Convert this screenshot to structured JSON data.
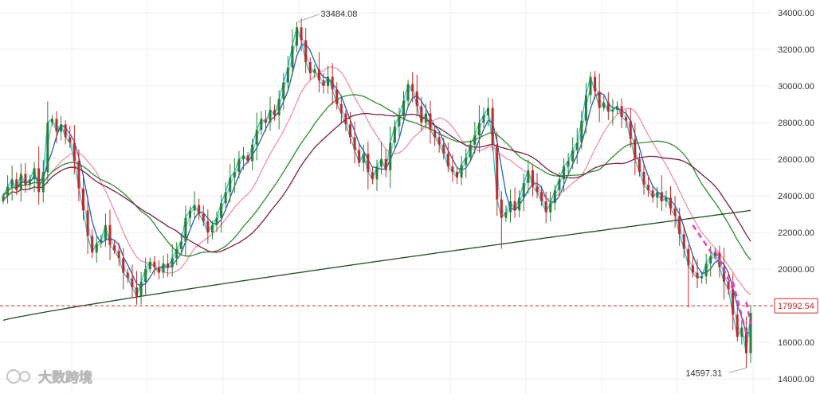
{
  "watermark": {
    "text": "大数跨境"
  },
  "chart_data": {
    "type": "candlestick",
    "y_ticks": [
      "34000.00",
      "32000.00",
      "30000.00",
      "28000.00",
      "26000.00",
      "24000.00",
      "22000.00",
      "20000.00",
      "18000.00",
      "16000.00",
      "14000.00"
    ],
    "ylim": [
      14000,
      34000
    ],
    "grid": true,
    "current_price": {
      "value": 17992.54,
      "label": "17992.54",
      "color": "#d62728"
    },
    "annotations": {
      "high": "33484.08",
      "low": "14597.31"
    },
    "colors": {
      "up": "#2e7d32",
      "down": "#c62828"
    },
    "series": [
      {
        "period_bars": 5,
        "color": "#27c3c8"
      },
      {
        "period_bars": 10,
        "color": "#80d4e8"
      },
      {
        "period_bars": 20,
        "color": "#1e62b6"
      },
      {
        "period_bars": 60,
        "color": "#ef8fa8"
      },
      {
        "period_bars": 120,
        "color": "#2e8b2e"
      },
      {
        "period_bars": 250,
        "color": "#7a1f4b"
      },
      {
        "period_bars": 500,
        "color": "#1f4f1f"
      }
    ],
    "trend_arrows_color": "#e040c8",
    "closes": [
      24000,
      24500,
      24900,
      24300,
      25200,
      24600,
      24900,
      25500,
      24200,
      25300,
      28000,
      28200,
      27500,
      27900,
      27200,
      26900,
      25900,
      24400,
      23200,
      21800,
      20900,
      21400,
      21600,
      22400,
      21300,
      21000,
      20600,
      19800,
      19500,
      19000,
      18500,
      19300,
      20000,
      20400,
      20100,
      19800,
      20300,
      20100,
      20600,
      21100,
      21500,
      22800,
      23200,
      23500,
      23000,
      22600,
      22000,
      22400,
      22800,
      23600,
      24200,
      25000,
      25300,
      26000,
      26200,
      25900,
      26800,
      27600,
      28200,
      28000,
      28700,
      28400,
      29300,
      30200,
      31000,
      32200,
      33200,
      32500,
      31300,
      30700,
      30900,
      30300,
      30000,
      30500,
      29800,
      29000,
      28500,
      27900,
      27200,
      26500,
      25800,
      26300,
      25300,
      24900,
      25600,
      26000,
      25400,
      26900,
      27800,
      28400,
      29200,
      30100,
      29700,
      28900,
      28000,
      28500,
      27600,
      27200,
      26800,
      26300,
      25600,
      25300,
      25000,
      25700,
      26100,
      26800,
      27300,
      28000,
      28400,
      28800,
      26800,
      23800,
      22800,
      23100,
      23700,
      23200,
      23900,
      24700,
      25400,
      24500,
      24200,
      23700,
      23100,
      23600,
      24300,
      24900,
      25600,
      25900,
      26500,
      26900,
      28100,
      29500,
      30500,
      29700,
      28800,
      29100,
      28600,
      28700,
      28900,
      28300,
      28100,
      27100,
      26000,
      25300,
      24600,
      24300,
      23900,
      24200,
      23700,
      23900,
      23300,
      22900,
      21900,
      21100,
      20200,
      19800,
      19500,
      19600,
      20300,
      20700,
      20900,
      20100,
      19300,
      18900,
      17500,
      16300,
      16800,
      15400,
      17600
    ]
  }
}
